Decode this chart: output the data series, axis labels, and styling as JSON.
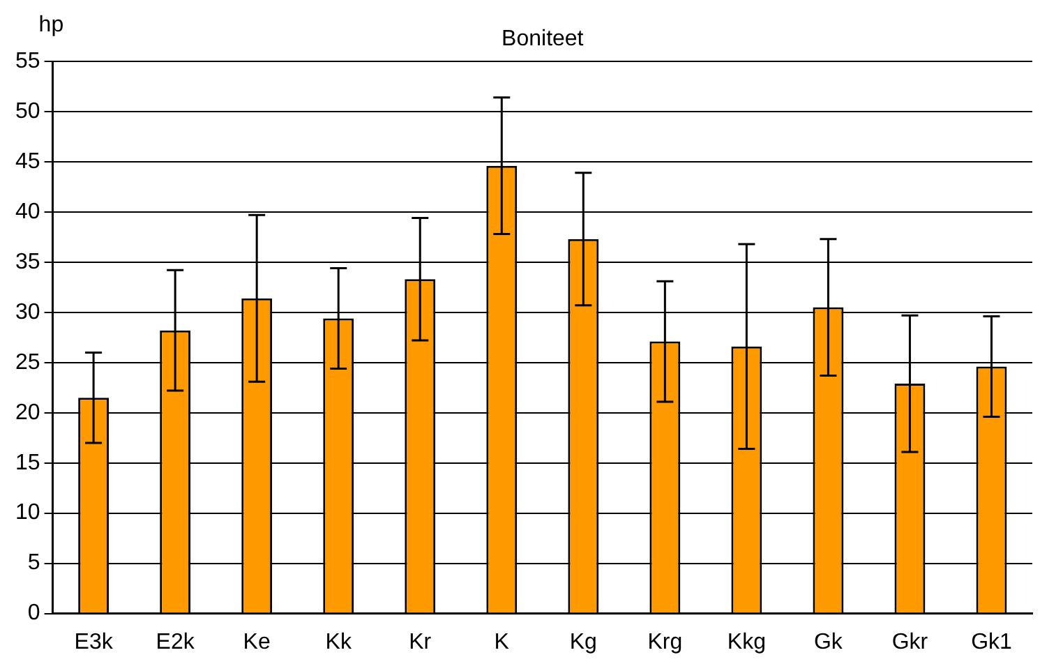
{
  "chart_data": {
    "type": "bar",
    "title": "Boniteet",
    "ylabel": "hp",
    "categories": [
      "E3k",
      "E2k",
      "Ke",
      "Kk",
      "Kr",
      "K",
      "Kg",
      "Krg",
      "Kkg",
      "Gk",
      "Gkr",
      "Gk1"
    ],
    "values": [
      21.5,
      28.2,
      31.4,
      29.4,
      33.3,
      44.6,
      37.3,
      27.1,
      26.6,
      30.5,
      22.9,
      24.6
    ],
    "errors": [
      4.5,
      6,
      8.3,
      5,
      6.1,
      6.8,
      6.6,
      6,
      10.2,
      6.8,
      6.8,
      5
    ],
    "color": "#ff9900",
    "ylim": [
      0,
      55
    ],
    "yticks": [
      0,
      5,
      10,
      15,
      20,
      25,
      30,
      35,
      40,
      45,
      50,
      55
    ],
    "grid": "y",
    "legend": false
  }
}
